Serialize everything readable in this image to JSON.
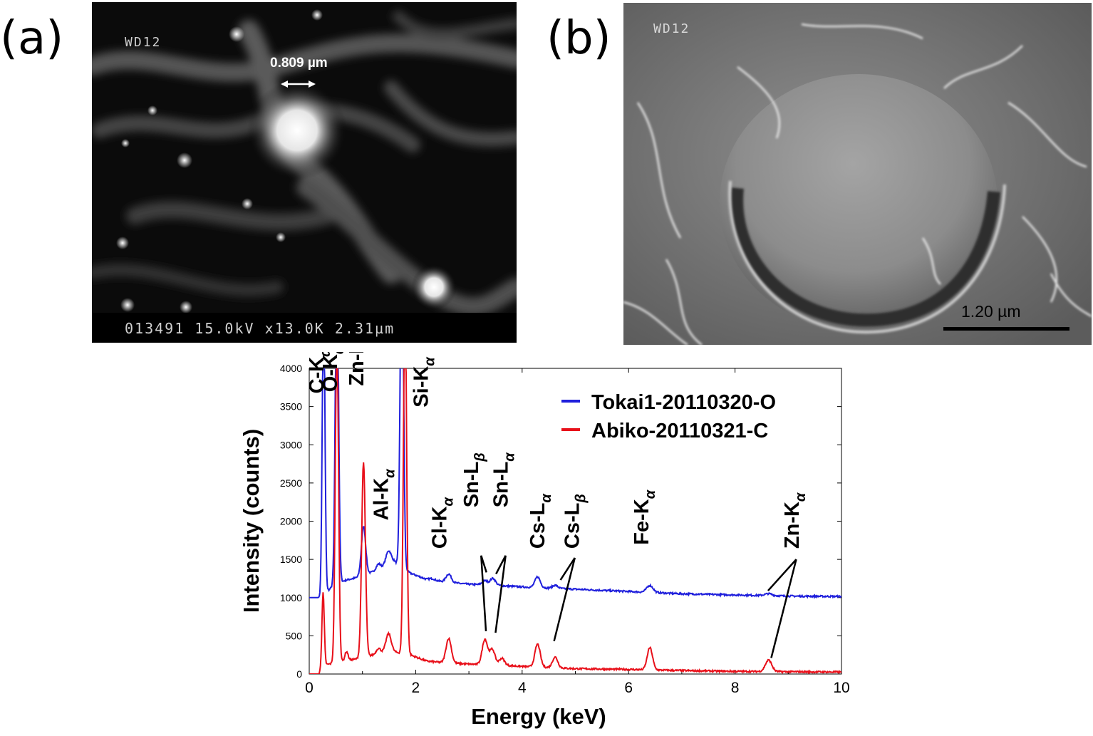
{
  "panels": {
    "a": {
      "label": "(a)",
      "wd": "WD12",
      "measure": "0.809 µm",
      "info": "013491  15.0kV  x13.0K  2.31µm"
    },
    "b": {
      "label": "(b)",
      "wd": "WD12",
      "scale": "1.20 µm"
    }
  },
  "chart_data": {
    "type": "line",
    "xlabel": "Energy (keV)",
    "ylabel": "Intensity (counts)",
    "xlim": [
      0,
      10
    ],
    "ylim": [
      0,
      4000
    ],
    "xticks": [
      "0",
      "2",
      "4",
      "6",
      "8",
      "10"
    ],
    "yticks": [
      "0",
      "500",
      "1000",
      "1500",
      "2000",
      "2500",
      "3000",
      "3500",
      "4000"
    ],
    "legend": {
      "placement": "top-right"
    },
    "series": [
      {
        "name": "Tokai1-20110320-O",
        "color": "#1f1fdc",
        "baseline": [
          [
            0,
            1000
          ],
          [
            0.2,
            1000
          ],
          [
            0.5,
            1180
          ],
          [
            0.7,
            1230
          ],
          [
            1.0,
            1280
          ],
          [
            1.3,
            1370
          ],
          [
            1.6,
            1470
          ],
          [
            1.9,
            1320
          ],
          [
            2.2,
            1240
          ],
          [
            2.6,
            1200
          ],
          [
            3.0,
            1175
          ],
          [
            3.5,
            1160
          ],
          [
            4.0,
            1140
          ],
          [
            5.0,
            1110
          ],
          [
            6.0,
            1080
          ],
          [
            7.0,
            1050
          ],
          [
            8.0,
            1035
          ],
          [
            9.0,
            1020
          ],
          [
            10.0,
            1015
          ]
        ],
        "peaks": [
          [
            0.27,
            3900,
            0.025
          ],
          [
            0.52,
            4300,
            0.03
          ],
          [
            1.02,
            650,
            0.04
          ],
          [
            1.3,
            70,
            0.04
          ],
          [
            1.49,
            180,
            0.05
          ],
          [
            1.74,
            4600,
            0.03
          ],
          [
            2.31,
            20,
            0.05
          ],
          [
            2.62,
            110,
            0.05
          ],
          [
            3.3,
            55,
            0.05
          ],
          [
            3.45,
            90,
            0.05
          ],
          [
            4.29,
            140,
            0.05
          ],
          [
            4.62,
            40,
            0.05
          ],
          [
            6.4,
            90,
            0.06
          ],
          [
            8.63,
            25,
            0.07
          ]
        ]
      },
      {
        "name": "Abiko-20110321-C",
        "color": "#e8101a",
        "baseline": [
          [
            0,
            0
          ],
          [
            0.18,
            0
          ],
          [
            0.3,
            120
          ],
          [
            0.6,
            160
          ],
          [
            0.9,
            200
          ],
          [
            1.2,
            250
          ],
          [
            1.5,
            300
          ],
          [
            1.9,
            250
          ],
          [
            2.2,
            170
          ],
          [
            2.5,
            150
          ],
          [
            3.0,
            130
          ],
          [
            3.5,
            120
          ],
          [
            4.0,
            100
          ],
          [
            5.0,
            70
          ],
          [
            6.0,
            60
          ],
          [
            7.0,
            45
          ],
          [
            8.0,
            35
          ],
          [
            9.0,
            30
          ],
          [
            10.0,
            25
          ]
        ],
        "peaks": [
          [
            0.26,
            980,
            0.022
          ],
          [
            0.52,
            4300,
            0.03
          ],
          [
            0.7,
            120,
            0.03
          ],
          [
            1.02,
            2550,
            0.035
          ],
          [
            1.3,
            70,
            0.04
          ],
          [
            1.49,
            230,
            0.05
          ],
          [
            1.8,
            4600,
            0.03
          ],
          [
            2.62,
            320,
            0.05
          ],
          [
            3.3,
            330,
            0.05
          ],
          [
            3.44,
            200,
            0.05
          ],
          [
            3.62,
            90,
            0.05
          ],
          [
            4.29,
            300,
            0.05
          ],
          [
            4.62,
            140,
            0.05
          ],
          [
            6.4,
            290,
            0.05
          ],
          [
            8.63,
            150,
            0.06
          ]
        ]
      }
    ],
    "annotations": [
      {
        "element": "C",
        "shell": "K",
        "sub": "α",
        "pos": {
          "x": 0.27,
          "y": 3670
        }
      },
      {
        "element": "O",
        "shell": "K",
        "sub": "α",
        "pos": {
          "x": 0.52,
          "y": 3690
        }
      },
      {
        "element": "Zn",
        "shell": "L",
        "sub": "α",
        "pos": {
          "x": 1.02,
          "y": 3770
        }
      },
      {
        "element": "Al",
        "shell": "K",
        "sub": "α",
        "pos": {
          "x": 1.48,
          "y": 2010
        }
      },
      {
        "element": "Si",
        "shell": "K",
        "sub": "α",
        "pos": {
          "x": 2.23,
          "y": 3490
        }
      },
      {
        "element": "Cl",
        "shell": "K",
        "sub": "α",
        "pos": {
          "x": 2.58,
          "y": 1640
        }
      },
      {
        "element": "Sn",
        "shell": "L",
        "sub": "β",
        "pos": {
          "x": 3.17,
          "y": 2180
        }
      },
      {
        "element": "Sn",
        "shell": "L",
        "sub": "α",
        "pos": {
          "x": 3.73,
          "y": 2180
        }
      },
      {
        "element": "Cs",
        "shell": "L",
        "sub": "α",
        "pos": {
          "x": 4.42,
          "y": 1640
        }
      },
      {
        "element": "Cs",
        "shell": "L",
        "sub": "β",
        "pos": {
          "x": 5.07,
          "y": 1640
        }
      },
      {
        "element": "Fe",
        "shell": "K",
        "sub": "α",
        "pos": {
          "x": 6.37,
          "y": 1690
        }
      },
      {
        "element": "Zn",
        "shell": "K",
        "sub": "α",
        "pos": {
          "x": 9.2,
          "y": 1640
        }
      }
    ],
    "pointers": [
      {
        "from": [
          3.23,
          1550
        ],
        "to": [
          3.32,
          560
        ]
      },
      {
        "from": [
          3.23,
          1550
        ],
        "to": [
          3.33,
          1330
        ]
      },
      {
        "from": [
          3.69,
          1550
        ],
        "to": [
          3.5,
          540
        ]
      },
      {
        "from": [
          3.69,
          1550
        ],
        "to": [
          3.51,
          1310
        ]
      },
      {
        "from": [
          4.99,
          1520
        ],
        "to": [
          4.6,
          430
        ]
      },
      {
        "from": [
          4.99,
          1520
        ],
        "to": [
          4.72,
          1230
        ]
      },
      {
        "from": [
          9.15,
          1500
        ],
        "to": [
          8.68,
          210
        ]
      },
      {
        "from": [
          9.15,
          1500
        ],
        "to": [
          8.62,
          1090
        ]
      }
    ]
  }
}
